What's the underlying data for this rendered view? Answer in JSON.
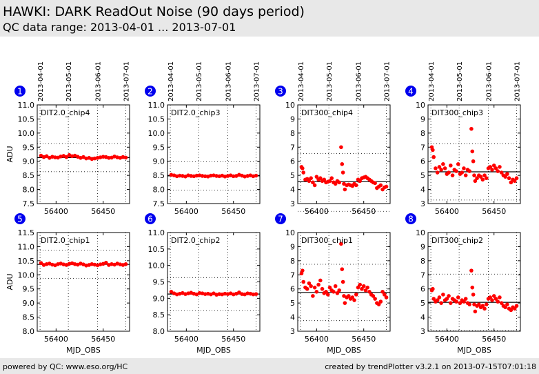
{
  "header": {
    "title": "HAWKI: DARK ReadOut Noise (90 days period)",
    "subtitle": "QC data range: 2013-04-01 ... 2013-07-01"
  },
  "footer": {
    "left": "powered by QC: www.eso.org/HC",
    "right": "created by trendPlotter v3.2.1 on 2013-07-15T07:01:18"
  },
  "date_ticks": [
    {
      "label": "2013-04-01",
      "mjd": 56383
    },
    {
      "label": "2013-05-01",
      "mjd": 56413
    },
    {
      "label": "2013-06-01",
      "mjd": 56444
    },
    {
      "label": "2013-07-01",
      "mjd": 56474
    }
  ],
  "colors": {
    "marker": "#ff0000",
    "badge": "#0000ee",
    "reference": "#000000"
  },
  "chart_data": [
    {
      "type": "scatter",
      "panel": "1",
      "label": "DIT2.0_chip4",
      "xlabel": "",
      "ylabel": "ADU",
      "xlim": [
        56380,
        56478
      ],
      "xticks": [
        56400,
        56450
      ],
      "ylim": [
        7.5,
        11.0
      ],
      "yticks": [
        "7.5",
        "8.0",
        "8.5",
        "9.0",
        "9.5",
        "10.0",
        "10.5",
        "11.0"
      ],
      "reference": 9.13,
      "limits": [
        8.63,
        9.63
      ],
      "x": [
        56384,
        56387,
        56390,
        56393,
        56396,
        56399,
        56402,
        56405,
        56408,
        56411,
        56414,
        56417,
        56420,
        56423,
        56426,
        56429,
        56432,
        56435,
        56438,
        56441,
        56444,
        56447,
        56450,
        56453,
        56456,
        56459,
        56462,
        56465,
        56468,
        56471,
        56474
      ],
      "y": [
        9.2,
        9.15,
        9.18,
        9.12,
        9.16,
        9.14,
        9.13,
        9.17,
        9.19,
        9.15,
        9.22,
        9.18,
        9.2,
        9.16,
        9.12,
        9.15,
        9.1,
        9.12,
        9.08,
        9.1,
        9.12,
        9.14,
        9.16,
        9.15,
        9.12,
        9.13,
        9.17,
        9.14,
        9.12,
        9.15,
        9.13
      ]
    },
    {
      "type": "scatter",
      "panel": "2",
      "label": "DIT2.0_chip3",
      "xlabel": "",
      "ylabel": "",
      "xlim": [
        56380,
        56478
      ],
      "xticks": [
        56400,
        56450
      ],
      "ylim": [
        7.5,
        11.0
      ],
      "yticks": [
        "7.5",
        "8.0",
        "8.5",
        "9.0",
        "9.5",
        "10.0",
        "10.5",
        "11.0"
      ],
      "reference": 8.48,
      "limits": [
        7.98,
        8.98
      ],
      "x": [
        56384,
        56387,
        56390,
        56393,
        56396,
        56399,
        56402,
        56405,
        56408,
        56411,
        56414,
        56417,
        56420,
        56423,
        56426,
        56429,
        56432,
        56435,
        56438,
        56441,
        56444,
        56447,
        56450,
        56453,
        56456,
        56459,
        56462,
        56465,
        56468,
        56471,
        56474
      ],
      "y": [
        8.52,
        8.5,
        8.47,
        8.49,
        8.48,
        8.46,
        8.5,
        8.48,
        8.47,
        8.49,
        8.5,
        8.48,
        8.47,
        8.46,
        8.49,
        8.5,
        8.48,
        8.47,
        8.49,
        8.46,
        8.48,
        8.5,
        8.47,
        8.48,
        8.52,
        8.49,
        8.46,
        8.48,
        8.5,
        8.47,
        8.49
      ]
    },
    {
      "type": "scatter",
      "panel": "3",
      "label": "DIT300_chip4",
      "xlabel": "",
      "ylabel": "",
      "xlim": [
        56380,
        56478
      ],
      "xticks": [
        56400,
        56450
      ],
      "ylim": [
        3,
        10
      ],
      "yticks": [
        "3",
        "4",
        "5",
        "6",
        "7",
        "8",
        "9",
        "10"
      ],
      "reference": 4.55,
      "limits": [
        2.45,
        6.55
      ],
      "x": [
        56384,
        56385,
        56386,
        56388,
        56390,
        56392,
        56394,
        56396,
        56398,
        56400,
        56402,
        56404,
        56406,
        56408,
        56410,
        56412,
        56414,
        56416,
        56418,
        56420,
        56422,
        56424,
        56426,
        56427,
        56428,
        56429,
        56430,
        56432,
        56434,
        56436,
        56438,
        56440,
        56442,
        56444,
        56446,
        56448,
        56450,
        56452,
        56454,
        56456,
        56458,
        56460,
        56462,
        56464,
        56466,
        56468,
        56470,
        56472,
        56474
      ],
      "y": [
        5.6,
        5.5,
        5.2,
        4.7,
        4.75,
        4.6,
        4.8,
        4.5,
        4.3,
        4.9,
        4.7,
        4.8,
        4.6,
        4.7,
        4.5,
        4.55,
        4.6,
        4.8,
        4.5,
        4.4,
        4.6,
        4.5,
        7.0,
        5.8,
        5.2,
        4.4,
        4.0,
        4.3,
        4.35,
        4.3,
        4.25,
        4.4,
        4.3,
        4.7,
        4.6,
        4.8,
        4.85,
        4.9,
        4.8,
        4.7,
        4.6,
        4.5,
        4.45,
        4.1,
        4.2,
        4.3,
        4.0,
        4.15,
        4.2
      ]
    },
    {
      "type": "scatter",
      "panel": "4",
      "label": "DIT300_chip3",
      "xlabel": "",
      "ylabel": "",
      "xlim": [
        56380,
        56478
      ],
      "xticks": [
        56400,
        56450
      ],
      "ylim": [
        3,
        10
      ],
      "yticks": [
        "3",
        "4",
        "5",
        "6",
        "7",
        "8",
        "9",
        "10"
      ],
      "reference": 5.25,
      "limits": [
        3.25,
        7.25
      ],
      "x": [
        56384,
        56385,
        56386,
        56388,
        56390,
        56392,
        56394,
        56396,
        56398,
        56400,
        56402,
        56404,
        56406,
        56408,
        56410,
        56412,
        56414,
        56416,
        56418,
        56420,
        56422,
        56424,
        56426,
        56427,
        56428,
        56429,
        56430,
        56432,
        56434,
        56436,
        56438,
        56440,
        56442,
        56444,
        56446,
        56448,
        56450,
        56452,
        56454,
        56456,
        56458,
        56460,
        56462,
        56464,
        56466,
        56468,
        56470,
        56472,
        56474
      ],
      "y": [
        7.0,
        6.8,
        6.3,
        5.5,
        5.2,
        5.6,
        5.4,
        5.8,
        5.5,
        5.1,
        5.2,
        5.7,
        5.0,
        5.4,
        5.3,
        5.8,
        5.1,
        5.2,
        5.5,
        5.0,
        5.4,
        5.3,
        8.3,
        6.7,
        6.0,
        5.0,
        4.6,
        4.8,
        5.0,
        4.9,
        4.7,
        5.0,
        4.8,
        5.5,
        5.6,
        5.4,
        5.7,
        5.5,
        5.3,
        5.6,
        5.2,
        5.0,
        4.9,
        5.1,
        4.8,
        4.5,
        4.7,
        4.6,
        4.8
      ]
    },
    {
      "type": "scatter",
      "panel": "5",
      "label": "DIT2.0_chip1",
      "xlabel": "MJD_OBS",
      "ylabel": "ADU",
      "xlim": [
        56380,
        56478
      ],
      "xticks": [
        56400,
        56450
      ],
      "ylim": [
        8.0,
        11.5
      ],
      "yticks": [
        "8.0",
        "8.5",
        "9.0",
        "9.5",
        "10.0",
        "10.5",
        "11.0",
        "11.5"
      ],
      "reference": 10.37,
      "limits": [
        9.87,
        10.87
      ],
      "x": [
        56384,
        56387,
        56390,
        56393,
        56396,
        56399,
        56402,
        56405,
        56408,
        56411,
        56414,
        56417,
        56420,
        56423,
        56426,
        56429,
        56432,
        56435,
        56438,
        56441,
        56444,
        56447,
        56450,
        56453,
        56456,
        56459,
        56462,
        56465,
        56468,
        56471,
        56474
      ],
      "y": [
        10.42,
        10.35,
        10.38,
        10.4,
        10.36,
        10.34,
        10.38,
        10.4,
        10.37,
        10.35,
        10.39,
        10.41,
        10.38,
        10.36,
        10.4,
        10.37,
        10.33,
        10.35,
        10.38,
        10.36,
        10.34,
        10.37,
        10.39,
        10.43,
        10.35,
        10.38,
        10.36,
        10.4,
        10.37,
        10.35,
        10.38
      ]
    },
    {
      "type": "scatter",
      "panel": "6",
      "label": "DIT2.0_chip2",
      "xlabel": "MJD_OBS",
      "ylabel": "",
      "xlim": [
        56380,
        56478
      ],
      "xticks": [
        56400,
        56450
      ],
      "ylim": [
        8.0,
        11.0
      ],
      "yticks": [
        "8.0",
        "8.5",
        "9.0",
        "9.5",
        "10.0",
        "10.5",
        "11.0"
      ],
      "reference": 9.13,
      "limits": [
        8.63,
        9.63
      ],
      "x": [
        56384,
        56387,
        56390,
        56393,
        56396,
        56399,
        56402,
        56405,
        56408,
        56411,
        56414,
        56417,
        56420,
        56423,
        56426,
        56429,
        56432,
        56435,
        56438,
        56441,
        56444,
        56447,
        56450,
        56453,
        56456,
        56459,
        56462,
        56465,
        56468,
        56471,
        56474
      ],
      "y": [
        9.2,
        9.15,
        9.12,
        9.14,
        9.16,
        9.13,
        9.15,
        9.17,
        9.14,
        9.12,
        9.16,
        9.15,
        9.13,
        9.14,
        9.12,
        9.15,
        9.11,
        9.13,
        9.12,
        9.14,
        9.13,
        9.15,
        9.12,
        9.14,
        9.18,
        9.13,
        9.12,
        9.15,
        9.14,
        9.12,
        9.13
      ]
    },
    {
      "type": "scatter",
      "panel": "7",
      "label": "DIT300_chip1",
      "xlabel": "MJD_OBS",
      "ylabel": "",
      "xlim": [
        56380,
        56478
      ],
      "xticks": [
        56400,
        56450
      ],
      "ylim": [
        3,
        10
      ],
      "yticks": [
        "3",
        "4",
        "5",
        "6",
        "7",
        "8",
        "9",
        "10"
      ],
      "reference": 5.75,
      "limits": [
        3.75,
        7.75
      ],
      "x": [
        56384,
        56385,
        56386,
        56388,
        56390,
        56392,
        56394,
        56396,
        56398,
        56400,
        56402,
        56404,
        56406,
        56408,
        56410,
        56412,
        56414,
        56416,
        56418,
        56420,
        56422,
        56424,
        56426,
        56427,
        56428,
        56429,
        56430,
        56432,
        56434,
        56436,
        56438,
        56440,
        56442,
        56444,
        56446,
        56448,
        56450,
        56452,
        56454,
        56456,
        56458,
        56460,
        56462,
        56464,
        56466,
        56468,
        56470,
        56472,
        56474
      ],
      "y": [
        7.1,
        7.3,
        6.5,
        6.1,
        6.0,
        6.4,
        6.2,
        5.5,
        6.1,
        5.8,
        6.3,
        6.6,
        6.0,
        5.7,
        5.8,
        5.6,
        6.1,
        5.9,
        5.8,
        6.2,
        5.7,
        5.9,
        9.2,
        7.4,
        6.5,
        5.5,
        5.0,
        5.4,
        5.5,
        5.3,
        5.4,
        5.2,
        5.6,
        6.1,
        6.3,
        6.0,
        6.2,
        5.9,
        6.1,
        5.8,
        5.6,
        5.5,
        5.3,
        5.0,
        4.9,
        5.1,
        5.8,
        5.6,
        5.4
      ]
    },
    {
      "type": "scatter",
      "panel": "8",
      "label": "DIT300_chip2",
      "xlabel": "MJD_OBS",
      "ylabel": "",
      "xlim": [
        56380,
        56478
      ],
      "xticks": [
        56400,
        56450
      ],
      "ylim": [
        3,
        10
      ],
      "yticks": [
        "3",
        "4",
        "5",
        "6",
        "7",
        "8",
        "9",
        "10"
      ],
      "reference": 5.05,
      "limits": [
        3.05,
        7.05
      ],
      "x": [
        56384,
        56385,
        56386,
        56388,
        56390,
        56392,
        56394,
        56396,
        56398,
        56400,
        56402,
        56404,
        56406,
        56408,
        56410,
        56412,
        56414,
        56416,
        56418,
        56420,
        56422,
        56424,
        56426,
        56427,
        56428,
        56429,
        56430,
        56432,
        56434,
        56436,
        56438,
        56440,
        56442,
        56444,
        56446,
        56448,
        56450,
        56452,
        56454,
        56456,
        56458,
        56460,
        56462,
        56464,
        56466,
        56468,
        56470,
        56472,
        56474
      ],
      "y": [
        5.9,
        6.0,
        5.3,
        5.1,
        5.2,
        5.4,
        5.0,
        5.6,
        5.2,
        5.3,
        5.5,
        5.0,
        5.3,
        5.2,
        5.1,
        5.4,
        5.0,
        5.2,
        5.1,
        5.3,
        5.0,
        4.9,
        7.3,
        6.1,
        5.6,
        4.9,
        4.4,
        4.8,
        4.9,
        4.7,
        4.8,
        4.6,
        4.9,
        5.3,
        5.4,
        5.2,
        5.5,
        5.3,
        5.1,
        5.4,
        5.0,
        4.8,
        4.7,
        4.9,
        4.6,
        4.5,
        4.7,
        4.6,
        4.8
      ]
    }
  ]
}
